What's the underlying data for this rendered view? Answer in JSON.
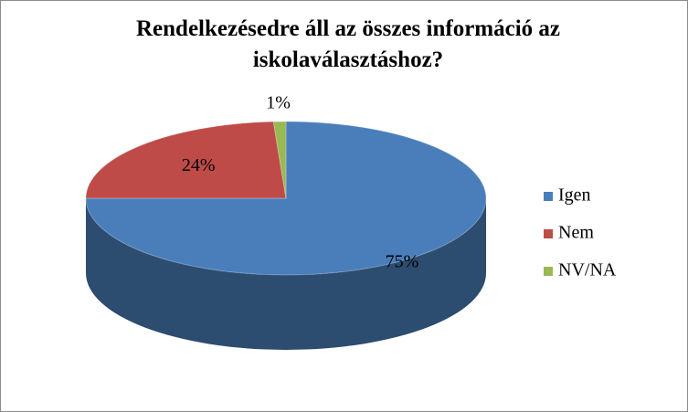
{
  "chart_data": {
    "type": "pie",
    "title": "Rendelkezésedre áll az összes információ az iskolaválasztáshoz?",
    "categories": [
      "Igen",
      "Nem",
      "NV/NA"
    ],
    "values": [
      75,
      24,
      1
    ],
    "value_labels": [
      "75%",
      "24%",
      "1%"
    ],
    "colors": [
      "#4a7ebb",
      "#be4b48",
      "#98b954"
    ],
    "legend": "right"
  }
}
